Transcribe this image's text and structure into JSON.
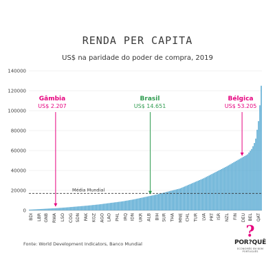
{
  "header": {
    "title": "RENDA PER CAPITA",
    "subtitle": "US$ na paridade do poder de compra, 2019"
  },
  "footer": {
    "source": "Fonte: World Development Indicators, Banco Mundial",
    "logo_text": "POR?QUÊ",
    "logo_tagline": "ECONOMÊS EM BOM PORTUGUÊS"
  },
  "chart_data": {
    "type": "bar",
    "ylim": [
      0,
      140000
    ],
    "yticks": [
      0,
      20000,
      40000,
      60000,
      80000,
      100000,
      120000,
      140000
    ],
    "ytick_labels": [
      "0",
      "20000",
      "40000",
      "60000",
      "80000",
      "100000",
      "120000",
      "140000"
    ],
    "bar_count": 170,
    "xtick_labels": [
      "BDI",
      "LBR",
      "GNB",
      "RWA",
      "LSO",
      "COG",
      "SDN",
      "PAK",
      "KGZ",
      "AGO",
      "LAO",
      "PHL",
      "IRQ",
      "IDN",
      "UKR",
      "ALB",
      "BIH",
      "SUR",
      "THA",
      "MNE",
      "CHL",
      "TUR",
      "LVA",
      "PRT",
      "ISR",
      "NZL",
      "FIN",
      "DEU",
      "BEL",
      "QAT"
    ],
    "values_quantiles": [
      [
        0,
        750
      ],
      [
        0.02,
        1000
      ],
      [
        0.05,
        1400
      ],
      [
        0.08,
        1800
      ],
      [
        0.12,
        2300
      ],
      [
        0.16,
        3000
      ],
      [
        0.2,
        3800
      ],
      [
        0.25,
        4800
      ],
      [
        0.3,
        6000
      ],
      [
        0.35,
        7500
      ],
      [
        0.4,
        9000
      ],
      [
        0.45,
        11000
      ],
      [
        0.5,
        13500
      ],
      [
        0.55,
        16000
      ],
      [
        0.6,
        19000
      ],
      [
        0.65,
        22000
      ],
      [
        0.7,
        27000
      ],
      [
        0.75,
        32000
      ],
      [
        0.8,
        38000
      ],
      [
        0.85,
        44000
      ],
      [
        0.88,
        48000
      ],
      [
        0.91,
        52000
      ],
      [
        0.94,
        56000
      ],
      [
        0.96,
        62000
      ],
      [
        0.975,
        70000
      ],
      [
        0.985,
        85000
      ],
      [
        0.992,
        95000
      ],
      [
        0.996,
        115000
      ],
      [
        1,
        125000
      ]
    ],
    "reference_line": {
      "label": "Média Mundial",
      "value": 17000
    },
    "annotations": [
      {
        "name": "Gâmbia",
        "value_label": "US$ 2.207",
        "value": 2207,
        "color": "#e6007e"
      },
      {
        "name": "Brasil",
        "value_label": "US$ 14.651",
        "value": 14651,
        "color": "#2e9b4f"
      },
      {
        "name": "Bélgica",
        "value_label": "US$ 53.205",
        "value": 53205,
        "color": "#e6007e"
      }
    ],
    "colors": {
      "bar": "#4ba3cf",
      "reference": "#333333"
    }
  }
}
